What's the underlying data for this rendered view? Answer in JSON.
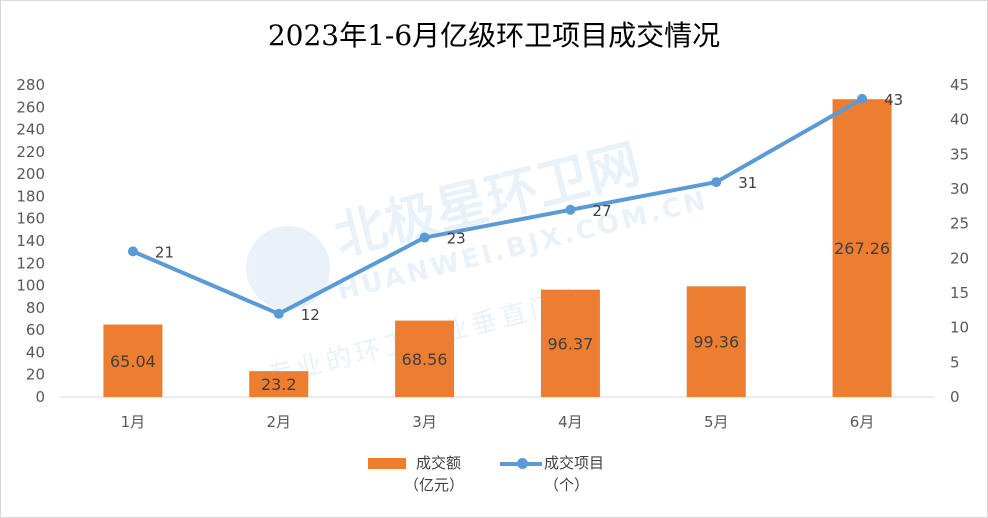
{
  "chart_data": {
    "type": "bar+line",
    "title": "2023年1-6月亿级环卫项目成交情况",
    "categories": [
      "1月",
      "2月",
      "3月",
      "4月",
      "5月",
      "6月"
    ],
    "series": [
      {
        "name": "成交额（亿元）",
        "type": "bar",
        "axis": "left",
        "color": "#ED7D31",
        "values": [
          65.04,
          23.2,
          68.56,
          96.37,
          99.36,
          267.26
        ]
      },
      {
        "name": "成交项目（个）",
        "type": "line",
        "axis": "right",
        "color": "#5B9BD5",
        "values": [
          21,
          12,
          23,
          27,
          31,
          43
        ]
      }
    ],
    "y_left": {
      "min": 0,
      "max": 280,
      "step": 20,
      "ticks": [
        "0",
        "20",
        "40",
        "60",
        "80",
        "100",
        "120",
        "140",
        "160",
        "180",
        "200",
        "220",
        "240",
        "260",
        "280"
      ]
    },
    "y_right": {
      "min": 0,
      "max": 45,
      "step": 5,
      "ticks": [
        "0",
        "5",
        "10",
        "15",
        "20",
        "25",
        "30",
        "35",
        "40",
        "45"
      ]
    },
    "bar_labels": [
      "65.04",
      "23.2",
      "68.56",
      "96.37",
      "99.36",
      "267.26"
    ],
    "line_labels": [
      "21",
      "12",
      "23",
      "27",
      "31",
      "43"
    ],
    "grid": false,
    "legend_position": "bottom"
  },
  "legend": {
    "bar_label_line1": "成交额",
    "bar_label_line2": "（亿元）",
    "line_label_line1": "成交项目",
    "line_label_line2": "（个）"
  },
  "watermark": {
    "brand": "北极星环卫网",
    "url": "HUANWEI.BJX.COM.CN",
    "slogan": "专业的环卫行业垂直门户"
  }
}
